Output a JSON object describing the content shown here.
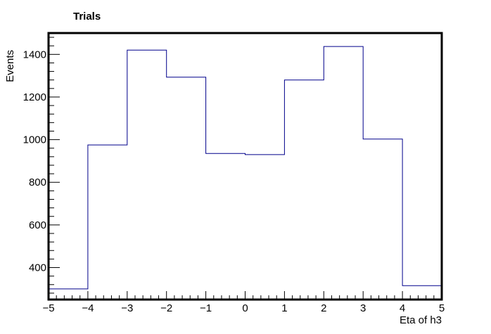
{
  "chart_data": {
    "type": "histogram",
    "title": "Trials",
    "xlabel": "Eta of h3",
    "ylabel": "Events",
    "bin_edges": [
      -5,
      -4,
      -3,
      -2,
      -1,
      0,
      1,
      2,
      3,
      4,
      5
    ],
    "values": [
      300,
      975,
      1420,
      1293,
      935,
      930,
      1280,
      1437,
      1003,
      315
    ],
    "xlim": [
      -5,
      5
    ],
    "ylim": [
      250,
      1500
    ],
    "x_ticks": [
      -5,
      -4,
      -3,
      -2,
      -1,
      0,
      1,
      2,
      3,
      4,
      5
    ],
    "x_tick_labels": [
      "−5",
      "−4",
      "−3",
      "−2",
      "−1",
      "0",
      "1",
      "2",
      "3",
      "4",
      "5"
    ],
    "y_ticks": [
      400,
      600,
      800,
      1000,
      1200,
      1400
    ],
    "y_tick_labels": [
      "400",
      "600",
      "800",
      "1000",
      "1200",
      "1400"
    ],
    "grid": false,
    "line_color": "#00008b",
    "frame_color": "#000000"
  }
}
